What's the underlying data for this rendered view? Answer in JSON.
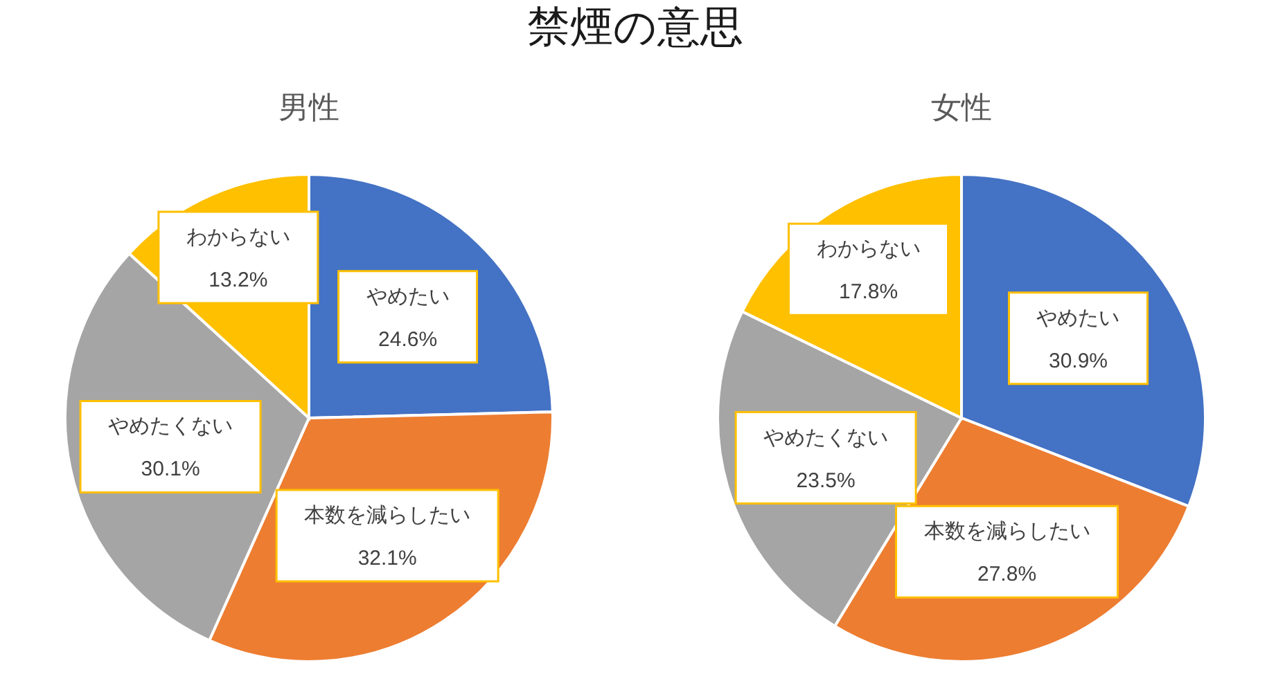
{
  "chart_data": [
    {
      "type": "pie",
      "title": "禁煙の意思",
      "subtitle": "男性",
      "categories": [
        "やめたい",
        "本数を減らしたい",
        "やめたくない",
        "わからない"
      ],
      "values": [
        24.6,
        32.1,
        30.1,
        13.2
      ],
      "colors": [
        "#4472c4",
        "#ed7d31",
        "#a5a5a5",
        "#ffc000"
      ],
      "value_labels": [
        "24.6%",
        "32.1%",
        "30.1%",
        "13.2%"
      ]
    },
    {
      "type": "pie",
      "subtitle": "女性",
      "categories": [
        "やめたい",
        "本数を減らしたい",
        "やめたくない",
        "わからない"
      ],
      "values": [
        30.9,
        27.8,
        23.5,
        17.8
      ],
      "colors": [
        "#4472c4",
        "#ed7d31",
        "#a5a5a5",
        "#ffc000"
      ],
      "value_labels": [
        "30.9%",
        "27.8%",
        "23.5%",
        "17.8%"
      ]
    }
  ]
}
